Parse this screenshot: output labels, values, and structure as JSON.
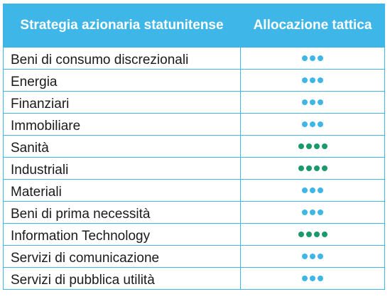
{
  "header": {
    "col_sector": "Strategia azionaria statunitense",
    "col_alloc": "Allocazione tattica"
  },
  "colors": {
    "header_bg": "#3fb6e8",
    "neutral_dot": "#3fb6e8",
    "overweight_dot": "#1a9a6a"
  },
  "rows": [
    {
      "sector": "Beni di consumo discrezionali",
      "dots": 3,
      "dot_color": "#3fb6e8"
    },
    {
      "sector": "Energia",
      "dots": 3,
      "dot_color": "#3fb6e8"
    },
    {
      "sector": "Finanziari",
      "dots": 3,
      "dot_color": "#3fb6e8"
    },
    {
      "sector": "Immobiliare",
      "dots": 3,
      "dot_color": "#3fb6e8"
    },
    {
      "sector": "Sanità",
      "dots": 4,
      "dot_color": "#1a9a6a"
    },
    {
      "sector": "Industriali",
      "dots": 4,
      "dot_color": "#1a9a6a"
    },
    {
      "sector": "Materiali",
      "dots": 3,
      "dot_color": "#3fb6e8"
    },
    {
      "sector": "Beni di prima necessità",
      "dots": 3,
      "dot_color": "#3fb6e8"
    },
    {
      "sector": "Information Technology",
      "dots": 4,
      "dot_color": "#1a9a6a"
    },
    {
      "sector": "Servizi di comunicazione",
      "dots": 3,
      "dot_color": "#3fb6e8"
    },
    {
      "sector": "Servizi di pubblica utilità",
      "dots": 3,
      "dot_color": "#3fb6e8"
    }
  ]
}
